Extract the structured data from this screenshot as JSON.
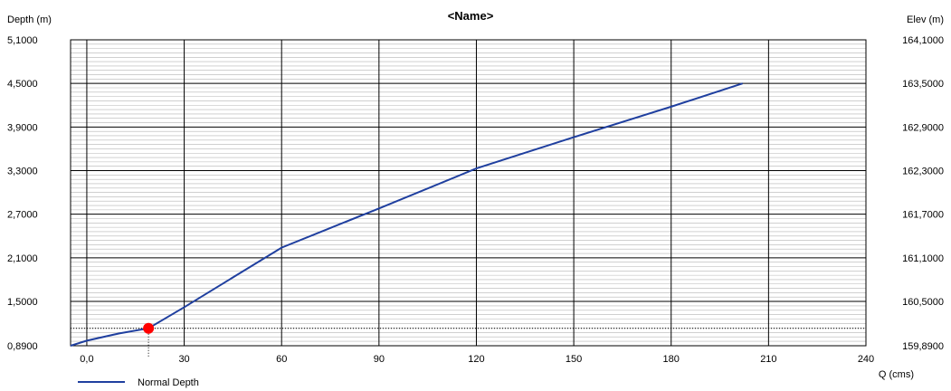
{
  "chart_data": {
    "type": "line",
    "title": "<Name>",
    "xlabel": "Q (cms)",
    "ylabel": "Depth (m)",
    "y2label": "Elev (m)",
    "xlim": [
      -5,
      240
    ],
    "ylim": [
      0.89,
      5.1
    ],
    "y2lim": [
      159.89,
      164.1
    ],
    "x_ticks": [
      0,
      30,
      60,
      90,
      120,
      150,
      180,
      210,
      240
    ],
    "x_tick_labels": [
      "0,0",
      "30",
      "60",
      "90",
      "120",
      "150",
      "180",
      "210",
      "240"
    ],
    "y_ticks": [
      0.89,
      1.5,
      2.1,
      2.7,
      3.3,
      3.9,
      4.5,
      5.1
    ],
    "y_tick_labels": [
      "0,8900",
      "1,5000",
      "2,1000",
      "2,7000",
      "3,3000",
      "3,9000",
      "4,5000",
      "5,1000"
    ],
    "y2_tick_labels": [
      "159,8900",
      "160,5000",
      "161,1000",
      "161,7000",
      "162,3000",
      "162,9000",
      "163,5000",
      "164,1000"
    ],
    "grid": true,
    "legend_placement": "bottom-left",
    "series": [
      {
        "name": "Normal Depth",
        "color": "#1f3f9f",
        "x": [
          -5,
          0,
          10,
          19,
          30,
          45,
          60,
          90,
          120,
          150,
          180,
          202
        ],
        "y": [
          0.89,
          0.96,
          1.06,
          1.13,
          1.42,
          1.83,
          2.24,
          2.78,
          3.33,
          3.76,
          4.18,
          4.5
        ]
      }
    ],
    "marker": {
      "x": 19,
      "y": 1.13,
      "color": "#ff0000"
    }
  }
}
